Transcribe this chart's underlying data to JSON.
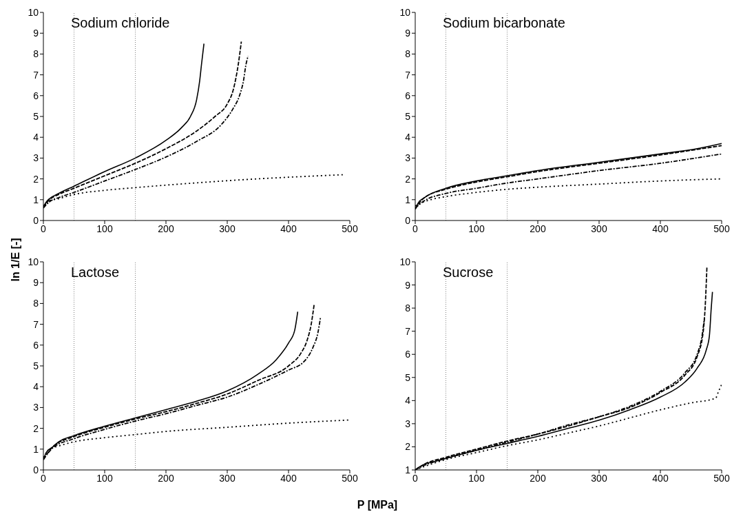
{
  "chart_data": [
    {
      "type": "line",
      "title": "Sodium chloride",
      "ylabel": "ln 1/E [-]",
      "xlim": [
        0,
        500
      ],
      "xticks": [
        0,
        100,
        200,
        300,
        400,
        500
      ],
      "ylim": [
        0,
        10
      ],
      "yticks": [
        0,
        1,
        2,
        3,
        4,
        5,
        6,
        7,
        8,
        9,
        10
      ],
      "ref_lines": [
        {
          "axis": "x",
          "value": 50,
          "color": "#808080",
          "line_style": "dotted"
        },
        {
          "axis": "x",
          "value": 150,
          "color": "#808080",
          "line_style": "dotted"
        }
      ],
      "series": [
        {
          "color": "#000000",
          "line_style": "solid",
          "x": [
            0,
            5,
            10,
            25,
            50,
            100,
            150,
            200,
            225,
            240,
            250,
            255,
            258,
            262
          ],
          "values": [
            0.65,
            0.9,
            1.05,
            1.3,
            1.65,
            2.35,
            3.0,
            3.85,
            4.45,
            5.0,
            5.8,
            6.7,
            7.5,
            8.5
          ]
        },
        {
          "color": "#000000",
          "line_style": "dashed",
          "x": [
            0,
            10,
            25,
            50,
            100,
            150,
            200,
            250,
            280,
            300,
            310,
            318,
            323
          ],
          "values": [
            0.65,
            1.0,
            1.25,
            1.55,
            2.15,
            2.75,
            3.45,
            4.3,
            5.0,
            5.6,
            6.3,
            7.5,
            8.6
          ]
        },
        {
          "color": "#000000",
          "line_style": "dashdot",
          "x": [
            0,
            10,
            25,
            50,
            100,
            150,
            200,
            250,
            290,
            310,
            320,
            327,
            330,
            334
          ],
          "values": [
            0.6,
            0.9,
            1.1,
            1.35,
            1.9,
            2.45,
            3.05,
            3.8,
            4.6,
            5.4,
            6.0,
            6.8,
            7.4,
            7.9
          ]
        },
        {
          "color": "#000000",
          "line_style": "dotted",
          "x": [
            0,
            10,
            25,
            50,
            100,
            150,
            200,
            260,
            320,
            400,
            490
          ],
          "values": [
            0.7,
            0.95,
            1.05,
            1.25,
            1.45,
            1.58,
            1.7,
            1.83,
            1.95,
            2.08,
            2.2
          ]
        }
      ]
    },
    {
      "type": "line",
      "title": "Sodium bicarbonate",
      "xlim": [
        0,
        500
      ],
      "xticks": [
        0,
        100,
        200,
        300,
        400,
        500
      ],
      "ylim": [
        0,
        10
      ],
      "yticks": [
        0,
        1,
        2,
        3,
        4,
        5,
        6,
        7,
        8,
        9,
        10
      ],
      "ref_lines": [
        {
          "axis": "x",
          "value": 50,
          "color": "#808080",
          "line_style": "dotted"
        },
        {
          "axis": "x",
          "value": 150,
          "color": "#808080",
          "line_style": "dotted"
        }
      ],
      "series": [
        {
          "color": "#000000",
          "line_style": "solid",
          "x": [
            0,
            5,
            15,
            50,
            100,
            150,
            200,
            300,
            400,
            460,
            500
          ],
          "values": [
            0.55,
            0.85,
            1.1,
            1.55,
            1.9,
            2.15,
            2.4,
            2.8,
            3.2,
            3.45,
            3.7
          ]
        },
        {
          "color": "#000000",
          "line_style": "dashed",
          "x": [
            0,
            15,
            50,
            100,
            150,
            200,
            300,
            400,
            500
          ],
          "values": [
            0.55,
            1.1,
            1.5,
            1.85,
            2.1,
            2.35,
            2.75,
            3.15,
            3.6
          ]
        },
        {
          "color": "#000000",
          "line_style": "dashdot",
          "x": [
            0,
            15,
            50,
            100,
            150,
            200,
            300,
            400,
            500
          ],
          "values": [
            0.6,
            0.95,
            1.3,
            1.55,
            1.8,
            2.0,
            2.4,
            2.75,
            3.2
          ]
        },
        {
          "color": "#000000",
          "line_style": "dotted",
          "x": [
            0,
            10,
            25,
            50,
            100,
            150,
            200,
            300,
            400,
            500
          ],
          "values": [
            0.7,
            0.85,
            1.0,
            1.15,
            1.35,
            1.5,
            1.6,
            1.75,
            1.9,
            2.0
          ]
        }
      ]
    },
    {
      "type": "line",
      "title": "Lactose",
      "xlim": [
        0,
        500
      ],
      "xticks": [
        0,
        100,
        200,
        300,
        400,
        500
      ],
      "ylim": [
        0,
        10
      ],
      "yticks": [
        0,
        1,
        2,
        3,
        4,
        5,
        6,
        7,
        8,
        9,
        10
      ],
      "ref_lines": [
        {
          "axis": "x",
          "value": 50,
          "color": "#808080",
          "line_style": "dotted"
        },
        {
          "axis": "x",
          "value": 150,
          "color": "#808080",
          "line_style": "dotted"
        }
      ],
      "series": [
        {
          "color": "#000000",
          "line_style": "solid",
          "x": [
            0,
            5,
            15,
            25,
            50,
            100,
            150,
            200,
            250,
            300,
            350,
            380,
            400,
            410,
            415
          ],
          "values": [
            0.5,
            0.85,
            1.1,
            1.35,
            1.65,
            2.1,
            2.5,
            2.9,
            3.3,
            3.8,
            4.6,
            5.3,
            6.1,
            6.7,
            7.6
          ]
        },
        {
          "color": "#000000",
          "line_style": "dashed",
          "x": [
            0,
            15,
            50,
            100,
            150,
            200,
            250,
            300,
            350,
            400,
            420,
            430,
            437,
            442
          ],
          "values": [
            0.5,
            1.1,
            1.6,
            2.05,
            2.45,
            2.8,
            3.2,
            3.65,
            4.3,
            5.0,
            5.6,
            6.2,
            7.0,
            8.0
          ]
        },
        {
          "color": "#000000",
          "line_style": "dashdot",
          "x": [
            0,
            15,
            50,
            100,
            150,
            200,
            250,
            300,
            350,
            400,
            425,
            440,
            448,
            452
          ],
          "values": [
            0.5,
            1.05,
            1.5,
            1.95,
            2.35,
            2.7,
            3.1,
            3.5,
            4.1,
            4.8,
            5.2,
            5.9,
            6.6,
            7.3
          ]
        },
        {
          "color": "#000000",
          "line_style": "dotted",
          "x": [
            0,
            10,
            25,
            50,
            100,
            150,
            200,
            300,
            400,
            500
          ],
          "values": [
            0.6,
            1.0,
            1.15,
            1.35,
            1.55,
            1.7,
            1.85,
            2.05,
            2.25,
            2.4
          ]
        }
      ]
    },
    {
      "type": "line",
      "title": "Sucrose",
      "xlabel": "P [MPa]",
      "xlim": [
        0,
        500
      ],
      "xticks": [
        0,
        100,
        200,
        300,
        400,
        500
      ],
      "ylim": [
        1,
        10
      ],
      "yticks": [
        1,
        2,
        3,
        4,
        5,
        6,
        7,
        8,
        9,
        10
      ],
      "ref_lines": [
        {
          "axis": "x",
          "value": 50,
          "color": "#808080",
          "line_style": "dotted"
        },
        {
          "axis": "x",
          "value": 150,
          "color": "#808080",
          "line_style": "dotted"
        }
      ],
      "series": [
        {
          "color": "#000000",
          "line_style": "solid",
          "x": [
            0,
            5,
            15,
            30,
            50,
            100,
            150,
            200,
            250,
            300,
            350,
            400,
            440,
            460,
            475,
            480,
            483,
            485
          ],
          "values": [
            1.0,
            1.1,
            1.25,
            1.35,
            1.5,
            1.85,
            2.15,
            2.45,
            2.8,
            3.15,
            3.6,
            4.15,
            4.8,
            5.4,
            6.2,
            6.8,
            8.0,
            8.7
          ]
        },
        {
          "color": "#000000",
          "line_style": "dashed",
          "x": [
            0,
            15,
            50,
            100,
            150,
            200,
            250,
            300,
            350,
            400,
            440,
            460,
            470,
            473,
            476
          ],
          "values": [
            1.0,
            1.25,
            1.55,
            1.9,
            2.25,
            2.55,
            2.9,
            3.3,
            3.7,
            4.35,
            5.1,
            5.9,
            7.0,
            8.0,
            9.8
          ]
        },
        {
          "color": "#000000",
          "line_style": "dashdot",
          "x": [
            0,
            15,
            50,
            100,
            150,
            200,
            250,
            300,
            350,
            400,
            440,
            460,
            468,
            472
          ],
          "values": [
            1.0,
            1.2,
            1.5,
            1.85,
            2.2,
            2.55,
            2.95,
            3.3,
            3.75,
            4.4,
            5.2,
            6.0,
            6.8,
            7.6
          ]
        },
        {
          "color": "#000000",
          "line_style": "dotted",
          "x": [
            0,
            15,
            50,
            100,
            150,
            200,
            250,
            300,
            350,
            400,
            450,
            490,
            495,
            500
          ],
          "values": [
            1.0,
            1.15,
            1.45,
            1.75,
            2.05,
            2.3,
            2.6,
            2.9,
            3.25,
            3.6,
            3.9,
            4.1,
            4.4,
            4.7
          ]
        }
      ]
    }
  ]
}
